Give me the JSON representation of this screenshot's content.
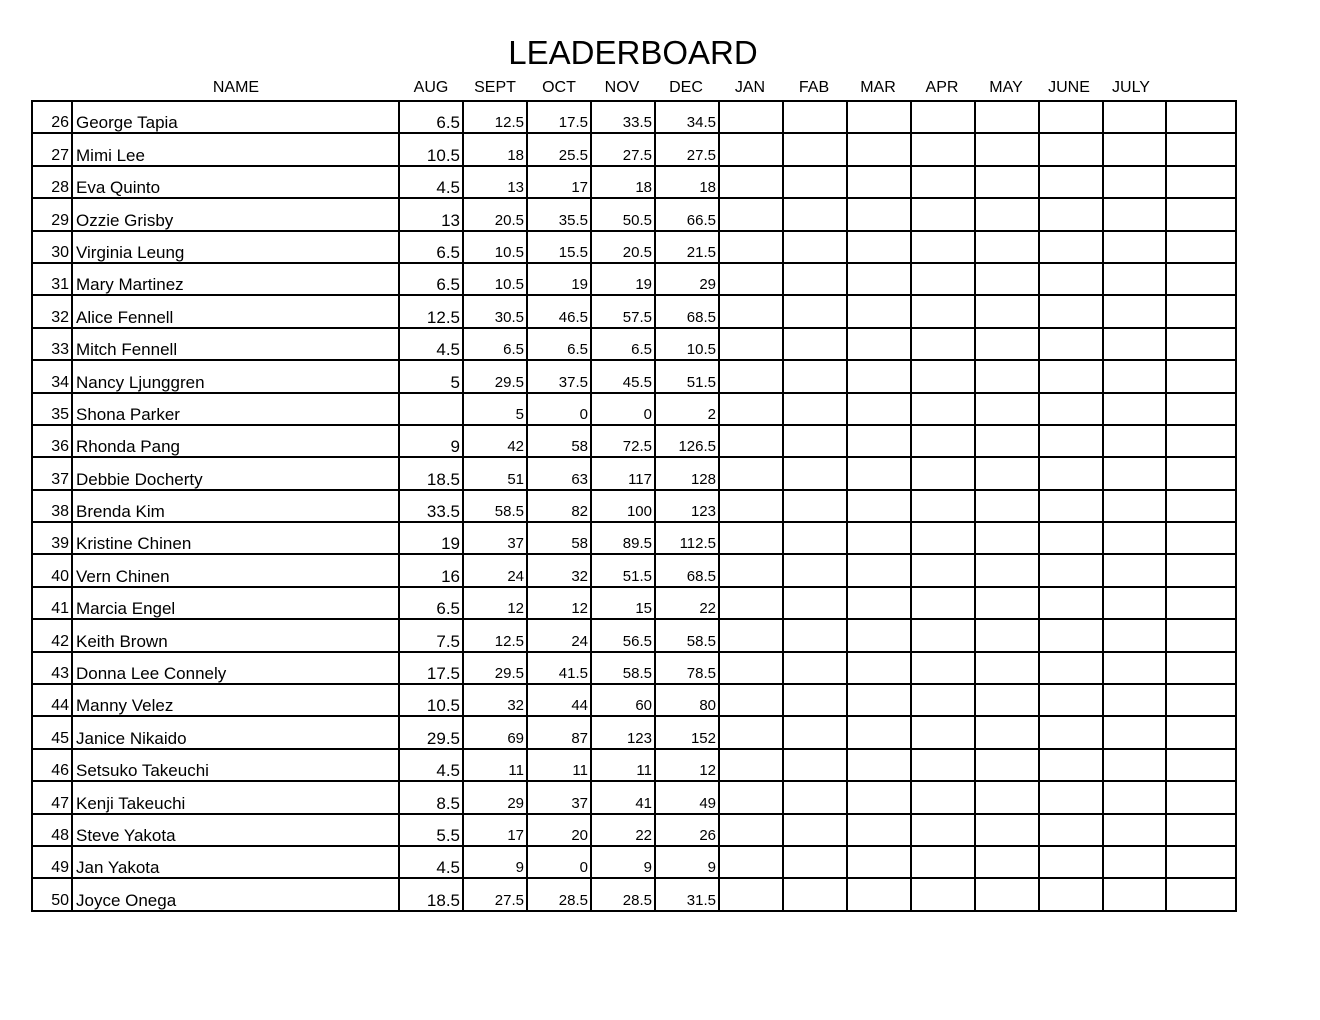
{
  "title": "LEADERBOARD",
  "columns": {
    "name": "NAME",
    "months": [
      "AUG",
      "SEPT",
      "OCT",
      "NOV",
      "DEC",
      "JAN",
      "FAB",
      "MAR",
      "APR",
      "MAY",
      "JUNE",
      "JULY"
    ]
  },
  "rows": [
    {
      "num": "26",
      "name": "George Tapia",
      "scores": [
        "6.5",
        "12.5",
        "17.5",
        "33.5",
        "34.5"
      ]
    },
    {
      "num": "27",
      "name": "Mimi Lee",
      "scores": [
        "10.5",
        "18",
        "25.5",
        "27.5",
        "27.5"
      ]
    },
    {
      "num": "28",
      "name": "Eva Quinto",
      "scores": [
        "4.5",
        "13",
        "17",
        "18",
        "18"
      ]
    },
    {
      "num": "29",
      "name": "Ozzie Grisby",
      "scores": [
        "13",
        "20.5",
        "35.5",
        "50.5",
        "66.5"
      ]
    },
    {
      "num": "30",
      "name": "Virginia Leung",
      "scores": [
        "6.5",
        "10.5",
        "15.5",
        "20.5",
        "21.5"
      ]
    },
    {
      "num": "31",
      "name": "Mary Martinez",
      "scores": [
        "6.5",
        "10.5",
        "19",
        "19",
        "29"
      ]
    },
    {
      "num": "32",
      "name": "Alice Fennell",
      "scores": [
        "12.5",
        "30.5",
        "46.5",
        "57.5",
        "68.5"
      ]
    },
    {
      "num": "33",
      "name": "Mitch Fennell",
      "scores": [
        "4.5",
        "6.5",
        "6.5",
        "6.5",
        "10.5"
      ]
    },
    {
      "num": "34",
      "name": "Nancy Ljunggren",
      "scores": [
        "5",
        "29.5",
        "37.5",
        "45.5",
        "51.5"
      ]
    },
    {
      "num": "35",
      "name": "Shona Parker",
      "scores": [
        "",
        "5",
        "0",
        "0",
        "2"
      ]
    },
    {
      "num": "36",
      "name": "Rhonda Pang",
      "scores": [
        "9",
        "42",
        "58",
        "72.5",
        "126.5"
      ]
    },
    {
      "num": "37",
      "name": "Debbie Docherty",
      "scores": [
        "18.5",
        "51",
        "63",
        "117",
        "128"
      ]
    },
    {
      "num": "38",
      "name": "Brenda Kim",
      "scores": [
        "33.5",
        "58.5",
        "82",
        "100",
        "123"
      ]
    },
    {
      "num": "39",
      "name": "Kristine Chinen",
      "scores": [
        "19",
        "37",
        "58",
        "89.5",
        "112.5"
      ]
    },
    {
      "num": "40",
      "name": "Vern Chinen",
      "scores": [
        "16",
        "24",
        "32",
        "51.5",
        "68.5"
      ]
    },
    {
      "num": "41",
      "name": "Marcia Engel",
      "scores": [
        "6.5",
        "12",
        "12",
        "15",
        "22"
      ]
    },
    {
      "num": "42",
      "name": "Keith Brown",
      "scores": [
        "7.5",
        "12.5",
        "24",
        "56.5",
        "58.5"
      ]
    },
    {
      "num": "43",
      "name": "Donna Lee Connely",
      "scores": [
        "17.5",
        "29.5",
        "41.5",
        "58.5",
        "78.5"
      ]
    },
    {
      "num": "44",
      "name": "Manny Velez",
      "scores": [
        "10.5",
        "32",
        "44",
        "60",
        "80"
      ]
    },
    {
      "num": "45",
      "name": "Janice Nikaido",
      "scores": [
        "29.5",
        "69",
        "87",
        "123",
        "152"
      ]
    },
    {
      "num": "46",
      "name": "Setsuko Takeuchi",
      "scores": [
        "4.5",
        "11",
        "11",
        "11",
        "12"
      ]
    },
    {
      "num": "47",
      "name": "Kenji Takeuchi",
      "scores": [
        "8.5",
        "29",
        "37",
        "41",
        "49"
      ]
    },
    {
      "num": "48",
      "name": "Steve Yakota",
      "scores": [
        "5.5",
        "17",
        "20",
        "22",
        "26"
      ]
    },
    {
      "num": "49",
      "name": "Jan Yakota",
      "scores": [
        "4.5",
        "9",
        "0",
        "9",
        "9"
      ]
    },
    {
      "num": "50",
      "name": "Joyce Onega",
      "scores": [
        "18.5",
        "27.5",
        "28.5",
        "28.5",
        "31.5"
      ]
    }
  ]
}
